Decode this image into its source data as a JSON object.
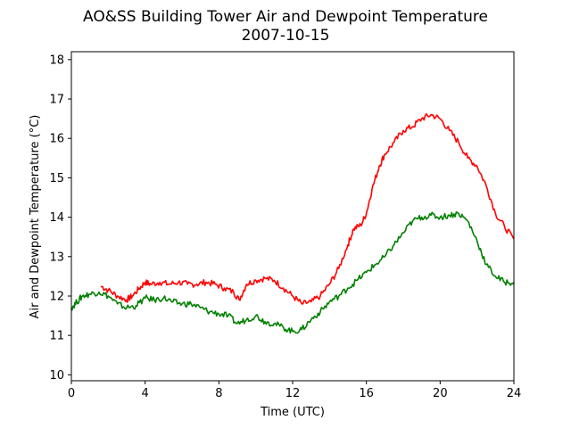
{
  "chart_data": {
    "type": "line",
    "title": "AO&SS Building Tower Air and Dewpoint Temperature",
    "subtitle": "2007-10-15",
    "xlabel": "Time (UTC)",
    "ylabel": "Air and Dewpoint Temperature (°C)",
    "xlim": [
      0,
      24
    ],
    "ylim": [
      9.85,
      18.2
    ],
    "xticks": [
      0,
      4,
      8,
      12,
      16,
      20,
      24
    ],
    "yticks": [
      10,
      11,
      12,
      13,
      14,
      15,
      16,
      17,
      18
    ],
    "grid": false,
    "legend": "none",
    "series": [
      {
        "color": "#ff0000",
        "x": [
          1.6,
          2.0,
          2.5,
          3.0,
          3.3,
          3.7,
          4.0,
          4.3,
          4.8,
          5.3,
          5.8,
          6.3,
          6.8,
          7.3,
          7.8,
          8.3,
          8.8,
          9.1,
          9.5,
          10.0,
          10.5,
          11.0,
          11.5,
          12.0,
          12.5,
          13.0,
          13.5,
          14.0,
          14.5,
          15.0,
          15.3,
          15.7,
          16.0,
          16.3,
          16.7,
          17.0,
          17.5,
          18.0,
          18.5,
          19.0,
          19.5,
          20.0,
          20.5,
          21.0,
          21.5,
          22.0,
          22.5,
          23.0,
          23.5,
          24.0
        ],
        "y": [
          12.25,
          12.15,
          12.0,
          11.9,
          12.0,
          12.2,
          12.35,
          12.3,
          12.35,
          12.3,
          12.35,
          12.3,
          12.3,
          12.35,
          12.3,
          12.2,
          12.1,
          11.9,
          12.3,
          12.4,
          12.45,
          12.4,
          12.2,
          12.0,
          11.8,
          11.85,
          12.0,
          12.3,
          12.7,
          13.3,
          13.7,
          13.8,
          14.1,
          14.7,
          15.3,
          15.6,
          15.9,
          16.2,
          16.3,
          16.5,
          16.6,
          16.5,
          16.2,
          15.9,
          15.5,
          15.3,
          14.8,
          14.1,
          13.75,
          13.45
        ]
      },
      {
        "color": "#008000",
        "x": [
          0.0,
          0.3,
          0.6,
          1.0,
          1.5,
          2.0,
          2.5,
          3.0,
          3.5,
          4.0,
          4.5,
          5.0,
          5.5,
          6.0,
          6.5,
          7.0,
          7.5,
          8.0,
          8.5,
          9.0,
          9.5,
          10.0,
          10.5,
          11.0,
          11.5,
          12.0,
          12.5,
          13.0,
          13.5,
          14.0,
          14.5,
          15.0,
          15.5,
          16.0,
          16.5,
          17.0,
          17.5,
          18.0,
          18.5,
          19.0,
          19.5,
          20.0,
          20.5,
          21.0,
          21.5,
          22.0,
          22.5,
          23.0,
          23.5,
          24.0
        ],
        "y": [
          11.7,
          11.85,
          12.0,
          12.05,
          12.1,
          12.0,
          11.8,
          11.7,
          11.75,
          11.95,
          11.9,
          11.95,
          11.85,
          11.8,
          11.8,
          11.7,
          11.6,
          11.55,
          11.5,
          11.3,
          11.4,
          11.5,
          11.35,
          11.3,
          11.2,
          11.1,
          11.15,
          11.4,
          11.6,
          11.85,
          12.0,
          12.2,
          12.4,
          12.6,
          12.8,
          13.0,
          13.3,
          13.6,
          13.9,
          14.0,
          14.05,
          14.0,
          14.05,
          14.1,
          13.9,
          13.4,
          12.8,
          12.5,
          12.35,
          12.35
        ]
      }
    ]
  }
}
